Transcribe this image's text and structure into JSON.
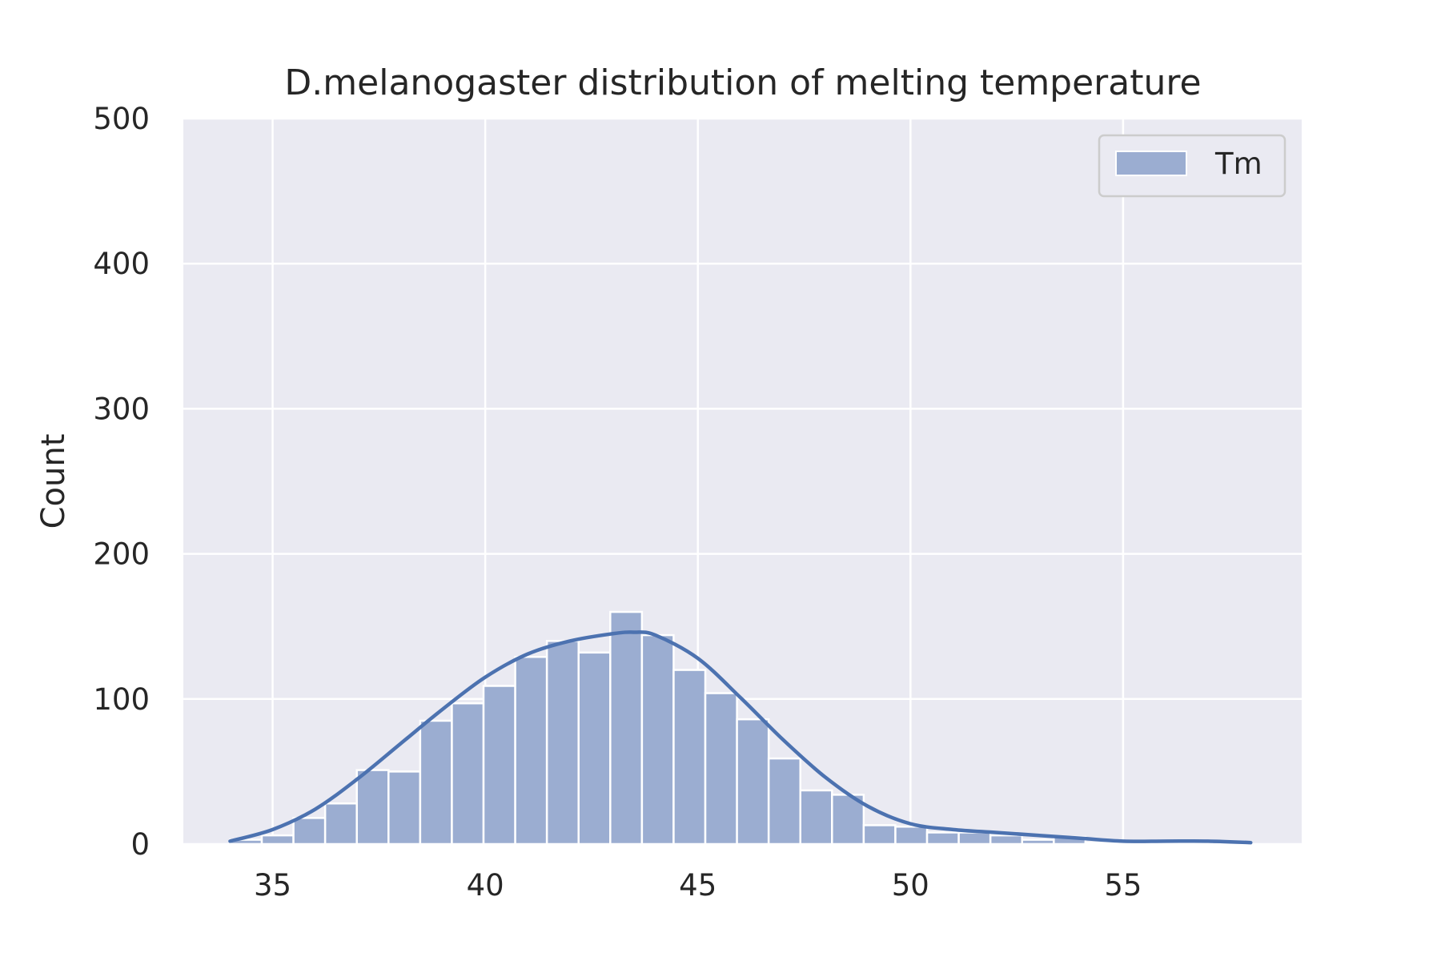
{
  "chart_data": {
    "type": "bar",
    "title": "D.melanogaster distribution of melting temperature",
    "xlabel": "",
    "ylabel": "Count",
    "xlim": [
      32.9,
      59.2
    ],
    "ylim": [
      0,
      500
    ],
    "xticks": [
      35,
      40,
      45,
      50,
      55
    ],
    "yticks": [
      0,
      100,
      200,
      300,
      400,
      500
    ],
    "grid": true,
    "legend": {
      "position": "top-right",
      "entries": [
        "Tm"
      ]
    },
    "colors": {
      "bar": "#9badd1",
      "kde": "#4c72b0",
      "background": "#eaeaf2",
      "grid": "#ffffff"
    },
    "series": [
      {
        "name": "Tm",
        "bin_start": 34.0,
        "bin_width": 0.745,
        "values": [
          3,
          6,
          18,
          28,
          51,
          50,
          85,
          97,
          109,
          129,
          140,
          132,
          160,
          144,
          120,
          104,
          86,
          59,
          37,
          34,
          13,
          12,
          8,
          8,
          6,
          3,
          5,
          1,
          1,
          1,
          1,
          2,
          0
        ]
      }
    ],
    "kde": {
      "x": [
        34,
        35,
        36,
        37,
        38,
        39,
        40,
        41,
        42,
        43,
        43.5,
        44,
        45,
        46,
        47,
        48,
        49,
        50,
        51,
        52,
        53,
        54,
        55,
        56,
        57,
        58
      ],
      "y": [
        2,
        10,
        24,
        45,
        69,
        93,
        115,
        131,
        140,
        145,
        146,
        144,
        128,
        101,
        72,
        46,
        26,
        14,
        10,
        8,
        6,
        4,
        2,
        2,
        2,
        1
      ]
    }
  }
}
